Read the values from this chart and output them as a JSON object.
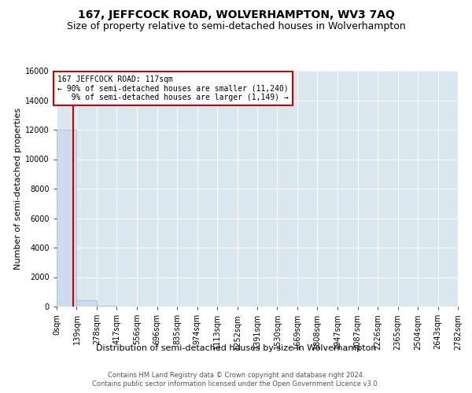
{
  "title": "167, JEFFCOCK ROAD, WOLVERHAMPTON, WV3 7AQ",
  "subtitle": "Size of property relative to semi-detached houses in Wolverhampton",
  "xlabel": "Distribution of semi-detached houses by size in Wolverhampton",
  "ylabel": "Number of semi-detached properties",
  "footnote1": "Contains HM Land Registry data © Crown copyright and database right 2024.",
  "footnote2": "Contains public sector information licensed under the Open Government Licence v3.0.",
  "bin_edges": [
    0,
    139,
    278,
    417,
    556,
    696,
    835,
    974,
    1113,
    1252,
    1391,
    1530,
    1669,
    1808,
    1947,
    2087,
    2226,
    2365,
    2504,
    2643,
    2782
  ],
  "bin_labels": [
    "0sqm",
    "139sqm",
    "278sqm",
    "417sqm",
    "556sqm",
    "696sqm",
    "835sqm",
    "974sqm",
    "1113sqm",
    "1252sqm",
    "1391sqm",
    "1530sqm",
    "1669sqm",
    "1808sqm",
    "1947sqm",
    "2087sqm",
    "2226sqm",
    "2365sqm",
    "2504sqm",
    "2643sqm",
    "2782sqm"
  ],
  "bar_heights": [
    12000,
    430,
    30,
    8,
    3,
    2,
    1,
    1,
    0,
    0,
    0,
    0,
    0,
    1,
    0,
    0,
    0,
    0,
    0,
    0
  ],
  "bar_color": "#ccdcec",
  "bar_edge_color": "#99b8cc",
  "property_size": 117,
  "property_line_color": "#cc0000",
  "annotation_line1": "167 JEFFCOCK ROAD: 117sqm",
  "annotation_line2": "← 90% of semi-detached houses are smaller (11,240)",
  "annotation_line3": "   9% of semi-detached houses are larger (1,149) →",
  "annotation_box_color": "#ffffff",
  "annotation_box_edge_color": "#cc0000",
  "ylim": [
    0,
    16000
  ],
  "yticks": [
    0,
    2000,
    4000,
    6000,
    8000,
    10000,
    12000,
    14000,
    16000
  ],
  "figure_bg": "#ffffff",
  "axes_bg": "#dce8f0",
  "grid_color": "#ffffff",
  "title_fontsize": 10,
  "subtitle_fontsize": 9,
  "tick_fontsize": 7,
  "ylabel_fontsize": 8,
  "xlabel_fontsize": 8,
  "footnote_fontsize": 6
}
